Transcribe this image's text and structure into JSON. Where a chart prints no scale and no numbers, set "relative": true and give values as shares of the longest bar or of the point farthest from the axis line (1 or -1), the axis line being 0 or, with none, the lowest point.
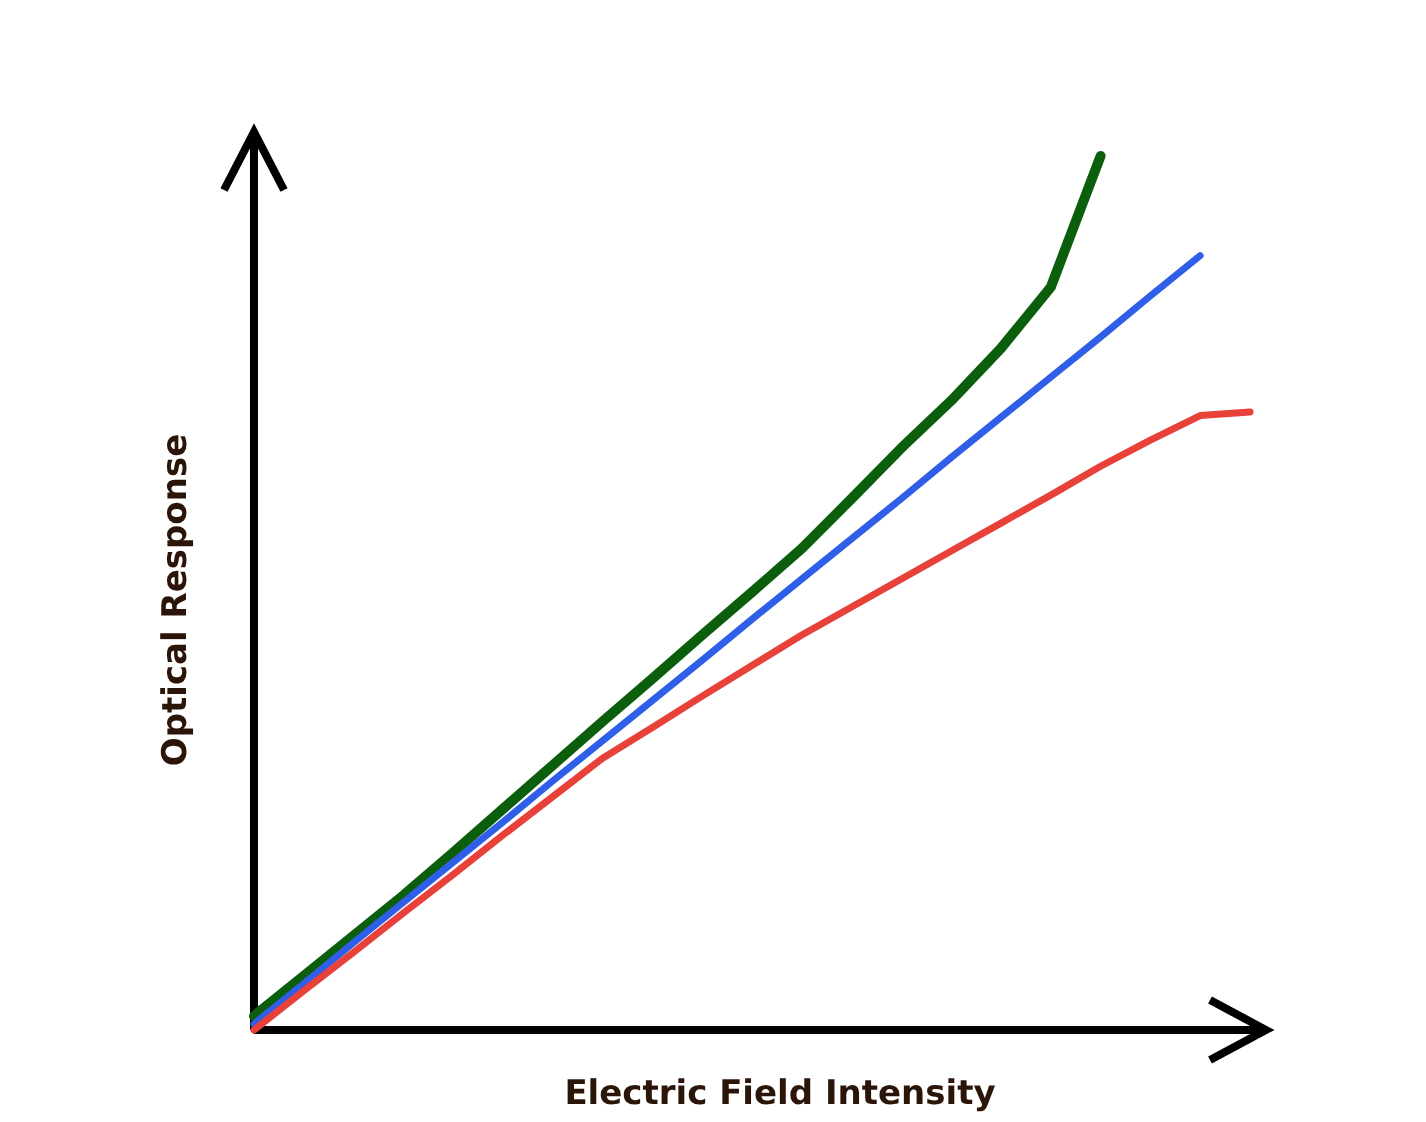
{
  "chart_data": {
    "type": "line",
    "relative": true,
    "xlabel": "Electric Field Intensity",
    "ylabel": "Optical Response",
    "grid": false,
    "legend": false,
    "marker": "none",
    "line_style": "solid",
    "categories": [
      null,
      null,
      null,
      null,
      null,
      null,
      null,
      null,
      null,
      null,
      null,
      null,
      null,
      null,
      null,
      null,
      null,
      null,
      null,
      null,
      null
    ],
    "series": [
      {
        "color": "#0b5e0b",
        "values": [
          0.016,
          0.062,
          0.108,
          0.154,
          0.203,
          0.253,
          0.303,
          0.353,
          0.402,
          0.452,
          0.501,
          0.551,
          0.608,
          0.666,
          0.72,
          0.78,
          0.85,
          1.0,
          null,
          null,
          null
        ]
      },
      {
        "color": "#2f5fe8",
        "values": [
          0.007,
          0.053,
          0.1,
          0.146,
          0.192,
          0.238,
          0.285,
          0.331,
          0.377,
          0.423,
          0.47,
          0.516,
          0.562,
          0.608,
          0.655,
          0.701,
          0.747,
          0.793,
          0.84,
          0.886,
          null
        ]
      },
      {
        "color": "#e8413a",
        "values": [
          0,
          0.045,
          0.089,
          0.134,
          0.178,
          0.223,
          0.267,
          0.311,
          0.346,
          0.382,
          0.417,
          0.452,
          0.484,
          0.516,
          0.548,
          0.58,
          0.612,
          0.645,
          0.675,
          0.703,
          0.707
        ]
      }
    ]
  }
}
